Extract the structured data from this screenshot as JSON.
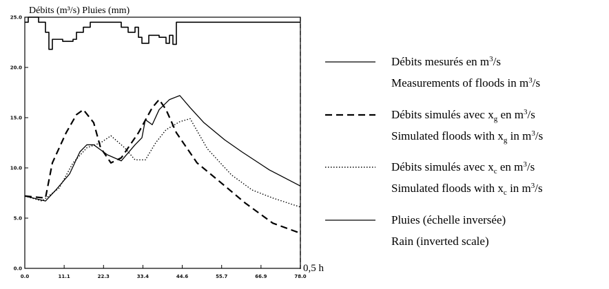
{
  "chart_data": {
    "type": "line",
    "title": "",
    "ylabel": "Débits (m³/s) Pluies (mm)",
    "xlabel": "",
    "xlim": [
      0,
      71.0
    ],
    "ylim": [
      0,
      25.0
    ],
    "x_tick_labels": [
      "0.0",
      "11.1",
      "22.3",
      "33.4",
      "44.6",
      "55.7",
      "66.9",
      "78.0"
    ],
    "y_tick_labels": [
      "0.0",
      "5.0",
      "10.0",
      "15.0",
      "20.0",
      "25.0"
    ],
    "annotation": "0,5 h",
    "series": [
      {
        "name": "Débits mesurés en m³/s",
        "style": "solid",
        "points": [
          [
            0,
            7.2
          ],
          [
            6,
            6.7
          ],
          [
            9,
            7.8
          ],
          [
            13,
            9.4
          ],
          [
            16,
            11.6
          ],
          [
            18,
            12.3
          ],
          [
            20,
            12.3
          ],
          [
            24,
            11.3
          ],
          [
            28,
            10.7
          ],
          [
            32,
            12.3
          ],
          [
            34,
            13.0
          ],
          [
            35,
            14.8
          ],
          [
            37,
            14.3
          ],
          [
            39,
            15.8
          ],
          [
            42,
            16.8
          ],
          [
            45,
            17.2
          ],
          [
            48,
            16.0
          ],
          [
            52,
            14.5
          ],
          [
            58,
            12.8
          ],
          [
            63,
            11.6
          ],
          [
            71,
            9.8
          ],
          [
            80,
            8.2
          ]
        ]
      },
      {
        "name": "Débits simulés avec xg en m³/s",
        "style": "dashed",
        "points": [
          [
            0,
            7.2
          ],
          [
            6,
            7.0
          ],
          [
            8,
            10.5
          ],
          [
            12,
            13.5
          ],
          [
            15,
            15.3
          ],
          [
            17,
            15.8
          ],
          [
            20,
            14.5
          ],
          [
            22,
            12.0
          ],
          [
            25,
            10.5
          ],
          [
            28,
            11.0
          ],
          [
            33,
            13.5
          ],
          [
            37,
            16.0
          ],
          [
            39,
            16.8
          ],
          [
            41,
            15.8
          ],
          [
            44,
            13.5
          ],
          [
            50,
            10.5
          ],
          [
            56,
            8.8
          ],
          [
            64,
            6.5
          ],
          [
            72,
            4.5
          ],
          [
            80,
            3.5
          ]
        ]
      },
      {
        "name": "Débits simulés avec xc en m³/s",
        "style": "dotted",
        "points": [
          [
            0,
            7.2
          ],
          [
            5,
            6.7
          ],
          [
            10,
            8.0
          ],
          [
            14,
            10.5
          ],
          [
            18,
            12.0
          ],
          [
            22,
            12.5
          ],
          [
            25,
            13.2
          ],
          [
            29,
            12.0
          ],
          [
            32,
            10.8
          ],
          [
            35,
            10.8
          ],
          [
            38,
            12.5
          ],
          [
            41,
            13.8
          ],
          [
            45,
            14.6
          ],
          [
            48,
            14.9
          ],
          [
            53,
            11.9
          ],
          [
            60,
            9.3
          ],
          [
            66,
            7.8
          ],
          [
            72,
            7.0
          ],
          [
            80,
            6.1
          ]
        ]
      },
      {
        "name": "Pluies (échelle inversée)",
        "style": "step",
        "inverted": true,
        "points": [
          [
            0,
            24.5
          ],
          [
            1,
            25.0
          ],
          [
            4,
            24.5
          ],
          [
            6,
            23.5
          ],
          [
            7,
            21.8
          ],
          [
            8,
            22.8
          ],
          [
            11,
            22.6
          ],
          [
            14,
            22.8
          ],
          [
            15,
            23.5
          ],
          [
            17,
            24.0
          ],
          [
            19,
            24.5
          ],
          [
            28,
            24.0
          ],
          [
            30,
            23.5
          ],
          [
            32,
            24.0
          ],
          [
            33,
            23.0
          ],
          [
            34,
            22.4
          ],
          [
            36,
            23.2
          ],
          [
            39,
            23.0
          ],
          [
            41,
            22.4
          ],
          [
            42,
            23.2
          ],
          [
            43,
            22.3
          ],
          [
            44,
            24.5
          ],
          [
            54,
            24.5
          ],
          [
            80,
            24.5
          ]
        ]
      }
    ]
  },
  "legend": [
    {
      "line1": "Débits mesurés en m",
      "sup": "3",
      "tail": "/s",
      "line2": "Measurements of floods in m",
      "sup2": "3",
      "tail2": "/s",
      "style": "solid"
    },
    {
      "line1": "Débits simulés avec x",
      "sub": "g",
      "mid": " en m",
      "sup": "3",
      "tail": "/s",
      "line2": "Simulated floods with x",
      "sub2": "g",
      "mid2": " in m",
      "sup2": "3",
      "tail2": "/s",
      "style": "dashed"
    },
    {
      "line1": "Débits simulés avec x",
      "sub": "c",
      "mid": " en m",
      "sup": "3",
      "tail": "/s",
      "line2": "Simulated floods with x",
      "sub2": "c",
      "mid2": " in m",
      "sup2": "3",
      "tail2": "/s",
      "style": "dotted"
    },
    {
      "line1": "Pluies (échelle inversée)",
      "line2": "Rain (inverted scale)",
      "style": "solid"
    }
  ]
}
